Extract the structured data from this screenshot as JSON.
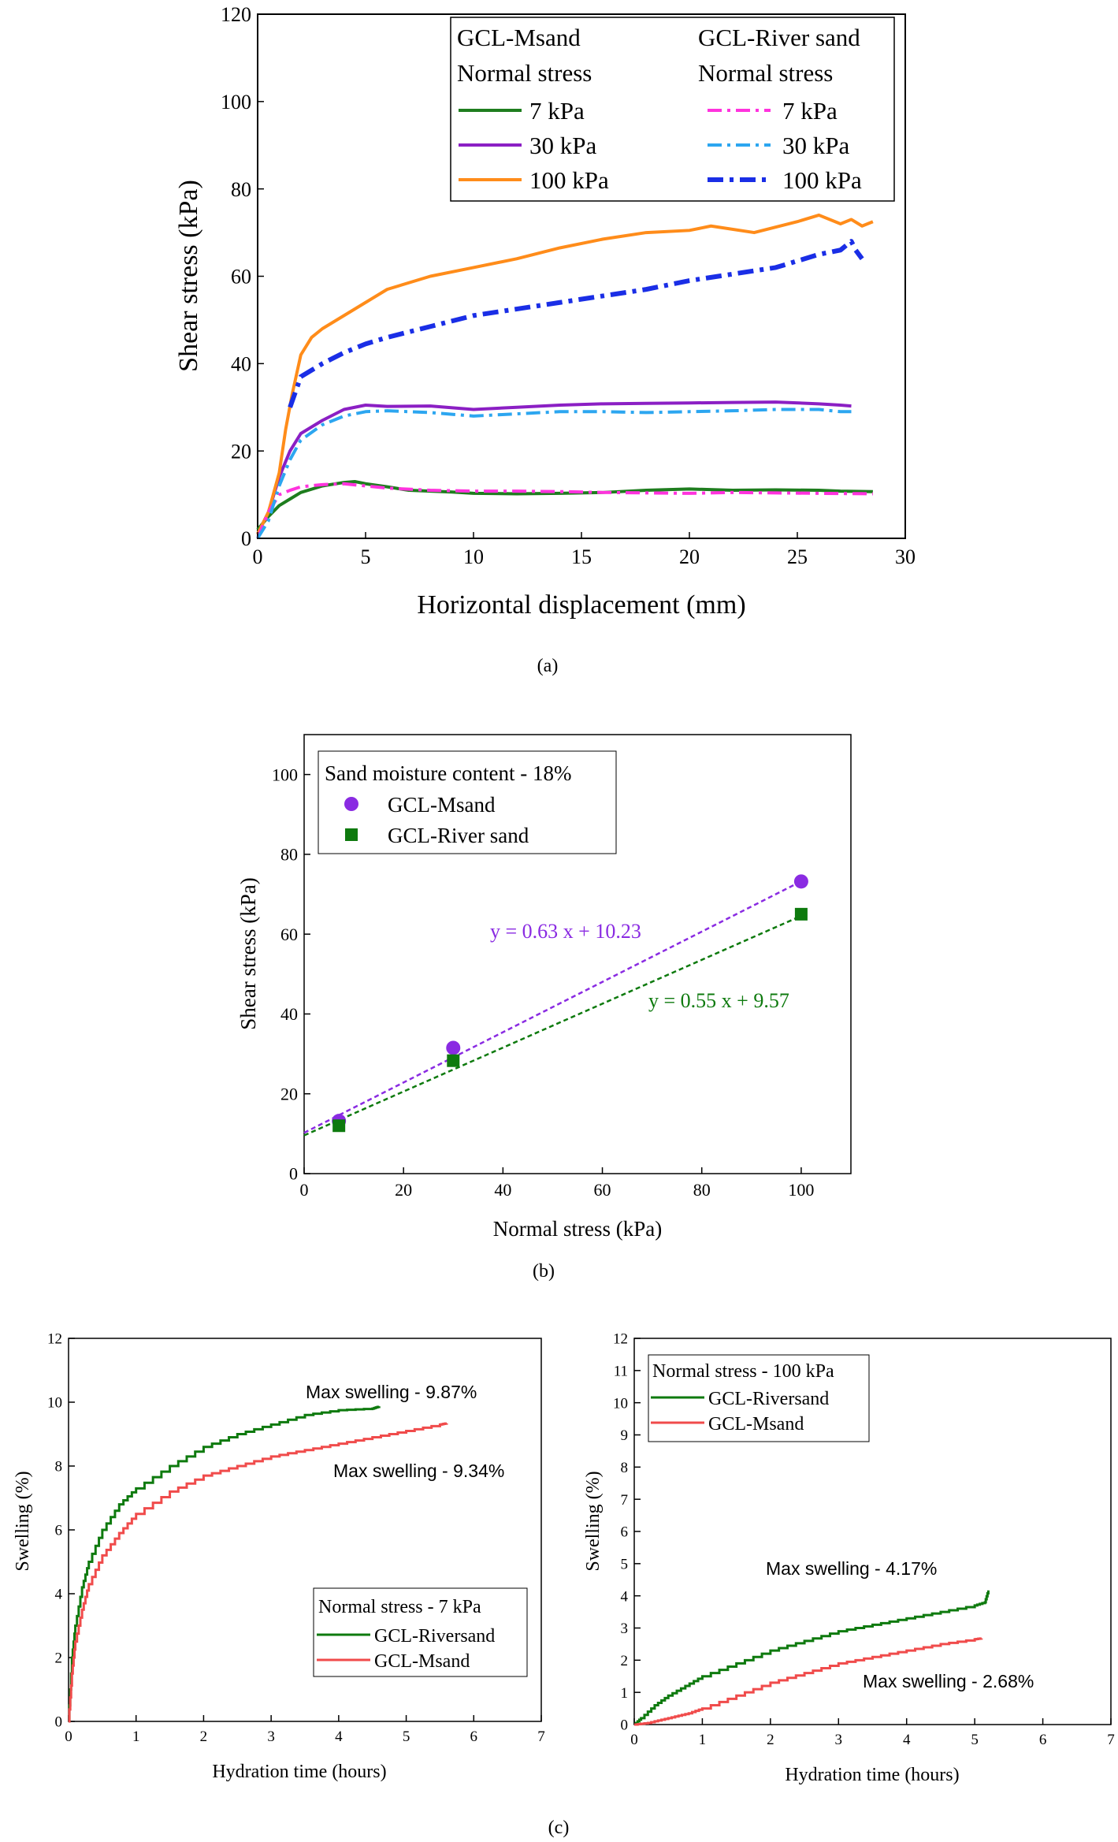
{
  "colors": {
    "green": "#1e7d1e",
    "purple": "#8b1fc4",
    "orange": "#ff8c1a",
    "magenta": "#ff33dd",
    "lightblue": "#2ca6f0",
    "blue": "#1a2ee6",
    "violet": "#8a2be2",
    "darkgreen": "#0e7a0e",
    "red": "#f04b4b"
  },
  "chart_data": [
    {
      "type": "line",
      "caption": "(a)",
      "xlabel": "Horizontal displacement (mm)",
      "ylabel": "Shear stress (kPa)",
      "xlim": [
        0,
        30
      ],
      "ylim": [
        0,
        120
      ],
      "xticks": [
        "0",
        "5",
        "10",
        "15",
        "20",
        "25",
        "30"
      ],
      "yticks": [
        "0",
        "20",
        "40",
        "60",
        "80",
        "100",
        "120"
      ],
      "legend": {
        "groups": [
          "GCL-Msand",
          "GCL-River sand"
        ],
        "subtitle": "Normal stress",
        "entries_left": [
          "7 kPa",
          "30 kPa",
          "100 kPa"
        ],
        "entries_right": [
          "7 kPa",
          "30 kPa",
          "100 kPa"
        ]
      },
      "series": [
        {
          "group": "GCL-Msand",
          "stress": "7 kPa",
          "style": "solid",
          "color": "green",
          "x": [
            0,
            0.5,
            1,
            1.5,
            2,
            3,
            4,
            4.5,
            5,
            6,
            7,
            8,
            9,
            10,
            12,
            14,
            16,
            18,
            20,
            22,
            24,
            26,
            27,
            28.5
          ],
          "y": [
            2,
            5,
            7.5,
            9,
            10.5,
            12,
            12.8,
            13,
            12.5,
            11.8,
            11,
            10.8,
            10.6,
            10.3,
            10.2,
            10.3,
            10.5,
            11,
            11.3,
            11,
            11.1,
            11,
            10.8,
            10.7
          ]
        },
        {
          "group": "GCL-Msand",
          "stress": "30 kPa",
          "style": "solid",
          "color": "purple",
          "x": [
            0,
            0.5,
            1,
            1.5,
            2,
            3,
            4,
            5,
            6,
            8,
            10,
            12,
            14,
            16,
            18,
            20,
            22,
            24,
            26,
            27,
            27.5
          ],
          "y": [
            1,
            6,
            14,
            20,
            24,
            27,
            29.5,
            30.5,
            30.2,
            30.3,
            29.5,
            30,
            30.5,
            30.8,
            30.9,
            31,
            31.1,
            31.2,
            30.8,
            30.5,
            30.3
          ]
        },
        {
          "group": "GCL-Msand",
          "stress": "100 kPa",
          "style": "solid",
          "color": "orange",
          "x": [
            0,
            0.5,
            1,
            1.3,
            1.6,
            2,
            2.5,
            3,
            4,
            5,
            6,
            8,
            10,
            12,
            14,
            16,
            18,
            20,
            21,
            23,
            25,
            26,
            27,
            27.5,
            28,
            28.5
          ],
          "y": [
            1,
            6,
            15,
            25,
            33,
            42,
            46,
            48,
            51,
            54,
            57,
            60,
            62,
            64,
            66.5,
            68.5,
            70,
            70.5,
            71.5,
            70,
            72.5,
            74,
            72,
            73,
            71.5,
            72.5
          ]
        },
        {
          "group": "GCL-River sand",
          "stress": "7 kPa",
          "style": "dash-dot",
          "color": "magenta",
          "x": [
            0,
            0.5,
            1,
            1.5,
            2,
            3,
            4,
            5,
            6,
            8,
            10,
            12,
            14,
            16,
            18,
            20,
            22,
            24,
            26,
            28.5
          ],
          "y": [
            0,
            6,
            10,
            11,
            11.8,
            12.3,
            12.5,
            12,
            11.5,
            11,
            10.8,
            10.8,
            10.7,
            10.5,
            10.4,
            10.3,
            10.5,
            10.4,
            10.3,
            10.2
          ]
        },
        {
          "group": "GCL-River sand",
          "stress": "30 kPa",
          "style": "dash-dot",
          "color": "lightblue",
          "x": [
            0,
            0.5,
            1,
            1.5,
            2,
            3,
            4,
            5,
            6,
            8,
            10,
            12,
            14,
            16,
            18,
            20,
            22,
            24,
            26,
            27,
            27.5
          ],
          "y": [
            0,
            4,
            12,
            18,
            22.5,
            26,
            28,
            29,
            29.2,
            28.8,
            28,
            28.5,
            29,
            29,
            28.8,
            29,
            29.2,
            29.5,
            29.5,
            29,
            29
          ]
        },
        {
          "group": "GCL-River sand",
          "stress": "100 kPa",
          "style": "dash-dot",
          "color": "blue",
          "x": [
            1.5,
            2,
            3,
            4,
            5,
            6,
            8,
            10,
            12,
            14,
            16,
            18,
            20,
            22,
            24,
            25,
            26,
            27,
            27.5,
            27.7,
            28
          ],
          "y": [
            30,
            37,
            40,
            42.5,
            44.5,
            46,
            48.5,
            51,
            52.5,
            54,
            55.5,
            57,
            59,
            60.5,
            62,
            63.5,
            65,
            66,
            68,
            66,
            64
          ]
        }
      ]
    },
    {
      "type": "scatter",
      "caption": "(b)",
      "xlabel": "Normal stress (kPa)",
      "ylabel": "Shear stress (kPa)",
      "xlim": [
        0,
        110
      ],
      "ylim": [
        0,
        110
      ],
      "xticks": [
        "0",
        "20",
        "40",
        "60",
        "80",
        "100"
      ],
      "yticks": [
        "0",
        "20",
        "40",
        "60",
        "80",
        "100"
      ],
      "legend_title": "Sand moisture content - 18%",
      "series": [
        {
          "name": "GCL-Msand",
          "marker": "circle",
          "color": "violet",
          "x": [
            7,
            30,
            100
          ],
          "y": [
            13.2,
            31.5,
            73.2
          ],
          "fit": {
            "label": "y = 0.63 x + 10.23",
            "slope": 0.63,
            "intercept": 10.23
          }
        },
        {
          "name": "GCL-River sand",
          "marker": "square",
          "color": "darkgreen",
          "x": [
            7,
            30,
            100
          ],
          "y": [
            12,
            28.3,
            65
          ],
          "fit": {
            "label": "y = 0.55 x + 9.57",
            "slope": 0.55,
            "intercept": 9.57
          }
        }
      ]
    },
    {
      "type": "line",
      "caption": "(c)",
      "xlabel": "Hydration time (hours)",
      "ylabel": "Swelling (%)",
      "xlim": [
        0,
        7
      ],
      "ylim": [
        0,
        12
      ],
      "xticks": [
        "0",
        "1",
        "2",
        "3",
        "4",
        "5",
        "6",
        "7"
      ],
      "yticks": [
        "0",
        "2",
        "4",
        "6",
        "8",
        "10",
        "12"
      ],
      "legend_title": "Normal stress - 7 kPa",
      "annotations": [
        "Max swelling - 9.87%",
        "Max swelling - 9.34%"
      ],
      "series": [
        {
          "name": "GCL-Riversand",
          "color": "darkgreen",
          "x": [
            0,
            0.05,
            0.1,
            0.2,
            0.3,
            0.5,
            0.75,
            1,
            1.5,
            2,
            2.5,
            3,
            3.5,
            4,
            4.5,
            4.6
          ],
          "y": [
            0,
            2,
            3,
            4.2,
            5,
            6,
            6.8,
            7.3,
            8,
            8.6,
            9,
            9.3,
            9.6,
            9.75,
            9.8,
            9.87
          ]
        },
        {
          "name": "GCL-Msand",
          "color": "red",
          "x": [
            0,
            0.05,
            0.1,
            0.2,
            0.3,
            0.5,
            0.75,
            1,
            1.5,
            2,
            2.5,
            3,
            3.5,
            4,
            4.5,
            5,
            5.5,
            5.6
          ],
          "y": [
            0,
            1.5,
            2.5,
            3.5,
            4.3,
            5.2,
            5.9,
            6.5,
            7.2,
            7.7,
            8,
            8.3,
            8.5,
            8.7,
            8.9,
            9.1,
            9.3,
            9.34
          ]
        }
      ]
    },
    {
      "type": "line",
      "xlabel": "Hydration time (hours)",
      "ylabel": "Swelling (%)",
      "xlim": [
        0,
        7
      ],
      "ylim": [
        0,
        12
      ],
      "xticks": [
        "0",
        "1",
        "2",
        "3",
        "4",
        "5",
        "6",
        "7"
      ],
      "yticks": [
        "0",
        "1",
        "2",
        "3",
        "4",
        "5",
        "6",
        "7",
        "8",
        "9",
        "10",
        "11",
        "12"
      ],
      "legend_title": "Normal stress - 100 kPa",
      "annotations": [
        "Max swelling - 4.17%",
        "Max swelling - 2.68%"
      ],
      "series": [
        {
          "name": "GCL-Riversand",
          "color": "darkgreen",
          "x": [
            0,
            0.1,
            0.3,
            0.5,
            0.75,
            1,
            1.5,
            2,
            2.5,
            3,
            3.5,
            4,
            4.5,
            5,
            5.15,
            5.2
          ],
          "y": [
            0,
            0.2,
            0.6,
            0.9,
            1.2,
            1.5,
            1.9,
            2.3,
            2.6,
            2.9,
            3.1,
            3.3,
            3.5,
            3.7,
            3.8,
            4.17
          ]
        },
        {
          "name": "GCL-Msand",
          "color": "red",
          "x": [
            0,
            0.2,
            0.4,
            0.6,
            0.8,
            1,
            1.5,
            2,
            2.5,
            3,
            3.5,
            4,
            4.5,
            5,
            5.1
          ],
          "y": [
            0,
            0.05,
            0.15,
            0.25,
            0.35,
            0.5,
            0.9,
            1.3,
            1.6,
            1.9,
            2.1,
            2.3,
            2.5,
            2.65,
            2.68
          ]
        }
      ]
    }
  ]
}
